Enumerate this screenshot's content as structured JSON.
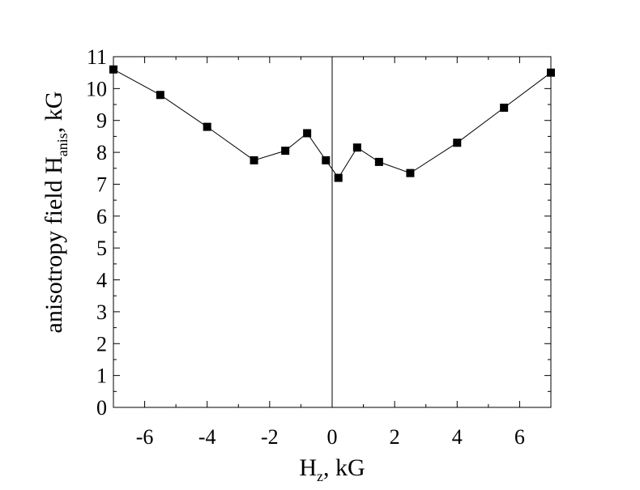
{
  "chart_data": {
    "type": "line",
    "title": "",
    "xlabel": {
      "main": "H",
      "sub": "z",
      "rest": ", kG"
    },
    "ylabel": {
      "main": "anisotropy field H",
      "sub": "anis",
      "rest": ", kG"
    },
    "xlim": [
      -7,
      7
    ],
    "ylim": [
      0,
      11
    ],
    "x_ticks": [
      -6,
      -4,
      -2,
      0,
      2,
      4,
      6
    ],
    "y_ticks": [
      0,
      1,
      2,
      3,
      4,
      5,
      6,
      7,
      8,
      9,
      10,
      11
    ],
    "grid": false,
    "legend": "none",
    "marker": "square",
    "line_color": "#000000",
    "zero_line": true,
    "series": [
      {
        "x": [
          -7,
          -5.5,
          -4,
          -2.5,
          -1.5,
          -0.8,
          -0.2,
          0.2,
          0.8,
          1.5,
          2.5,
          4,
          5.5,
          7
        ],
        "values": [
          10.6,
          9.8,
          8.8,
          7.75,
          8.05,
          8.6,
          7.75,
          7.2,
          8.15,
          7.7,
          7.35,
          8.3,
          9.4,
          10.5
        ]
      }
    ]
  }
}
